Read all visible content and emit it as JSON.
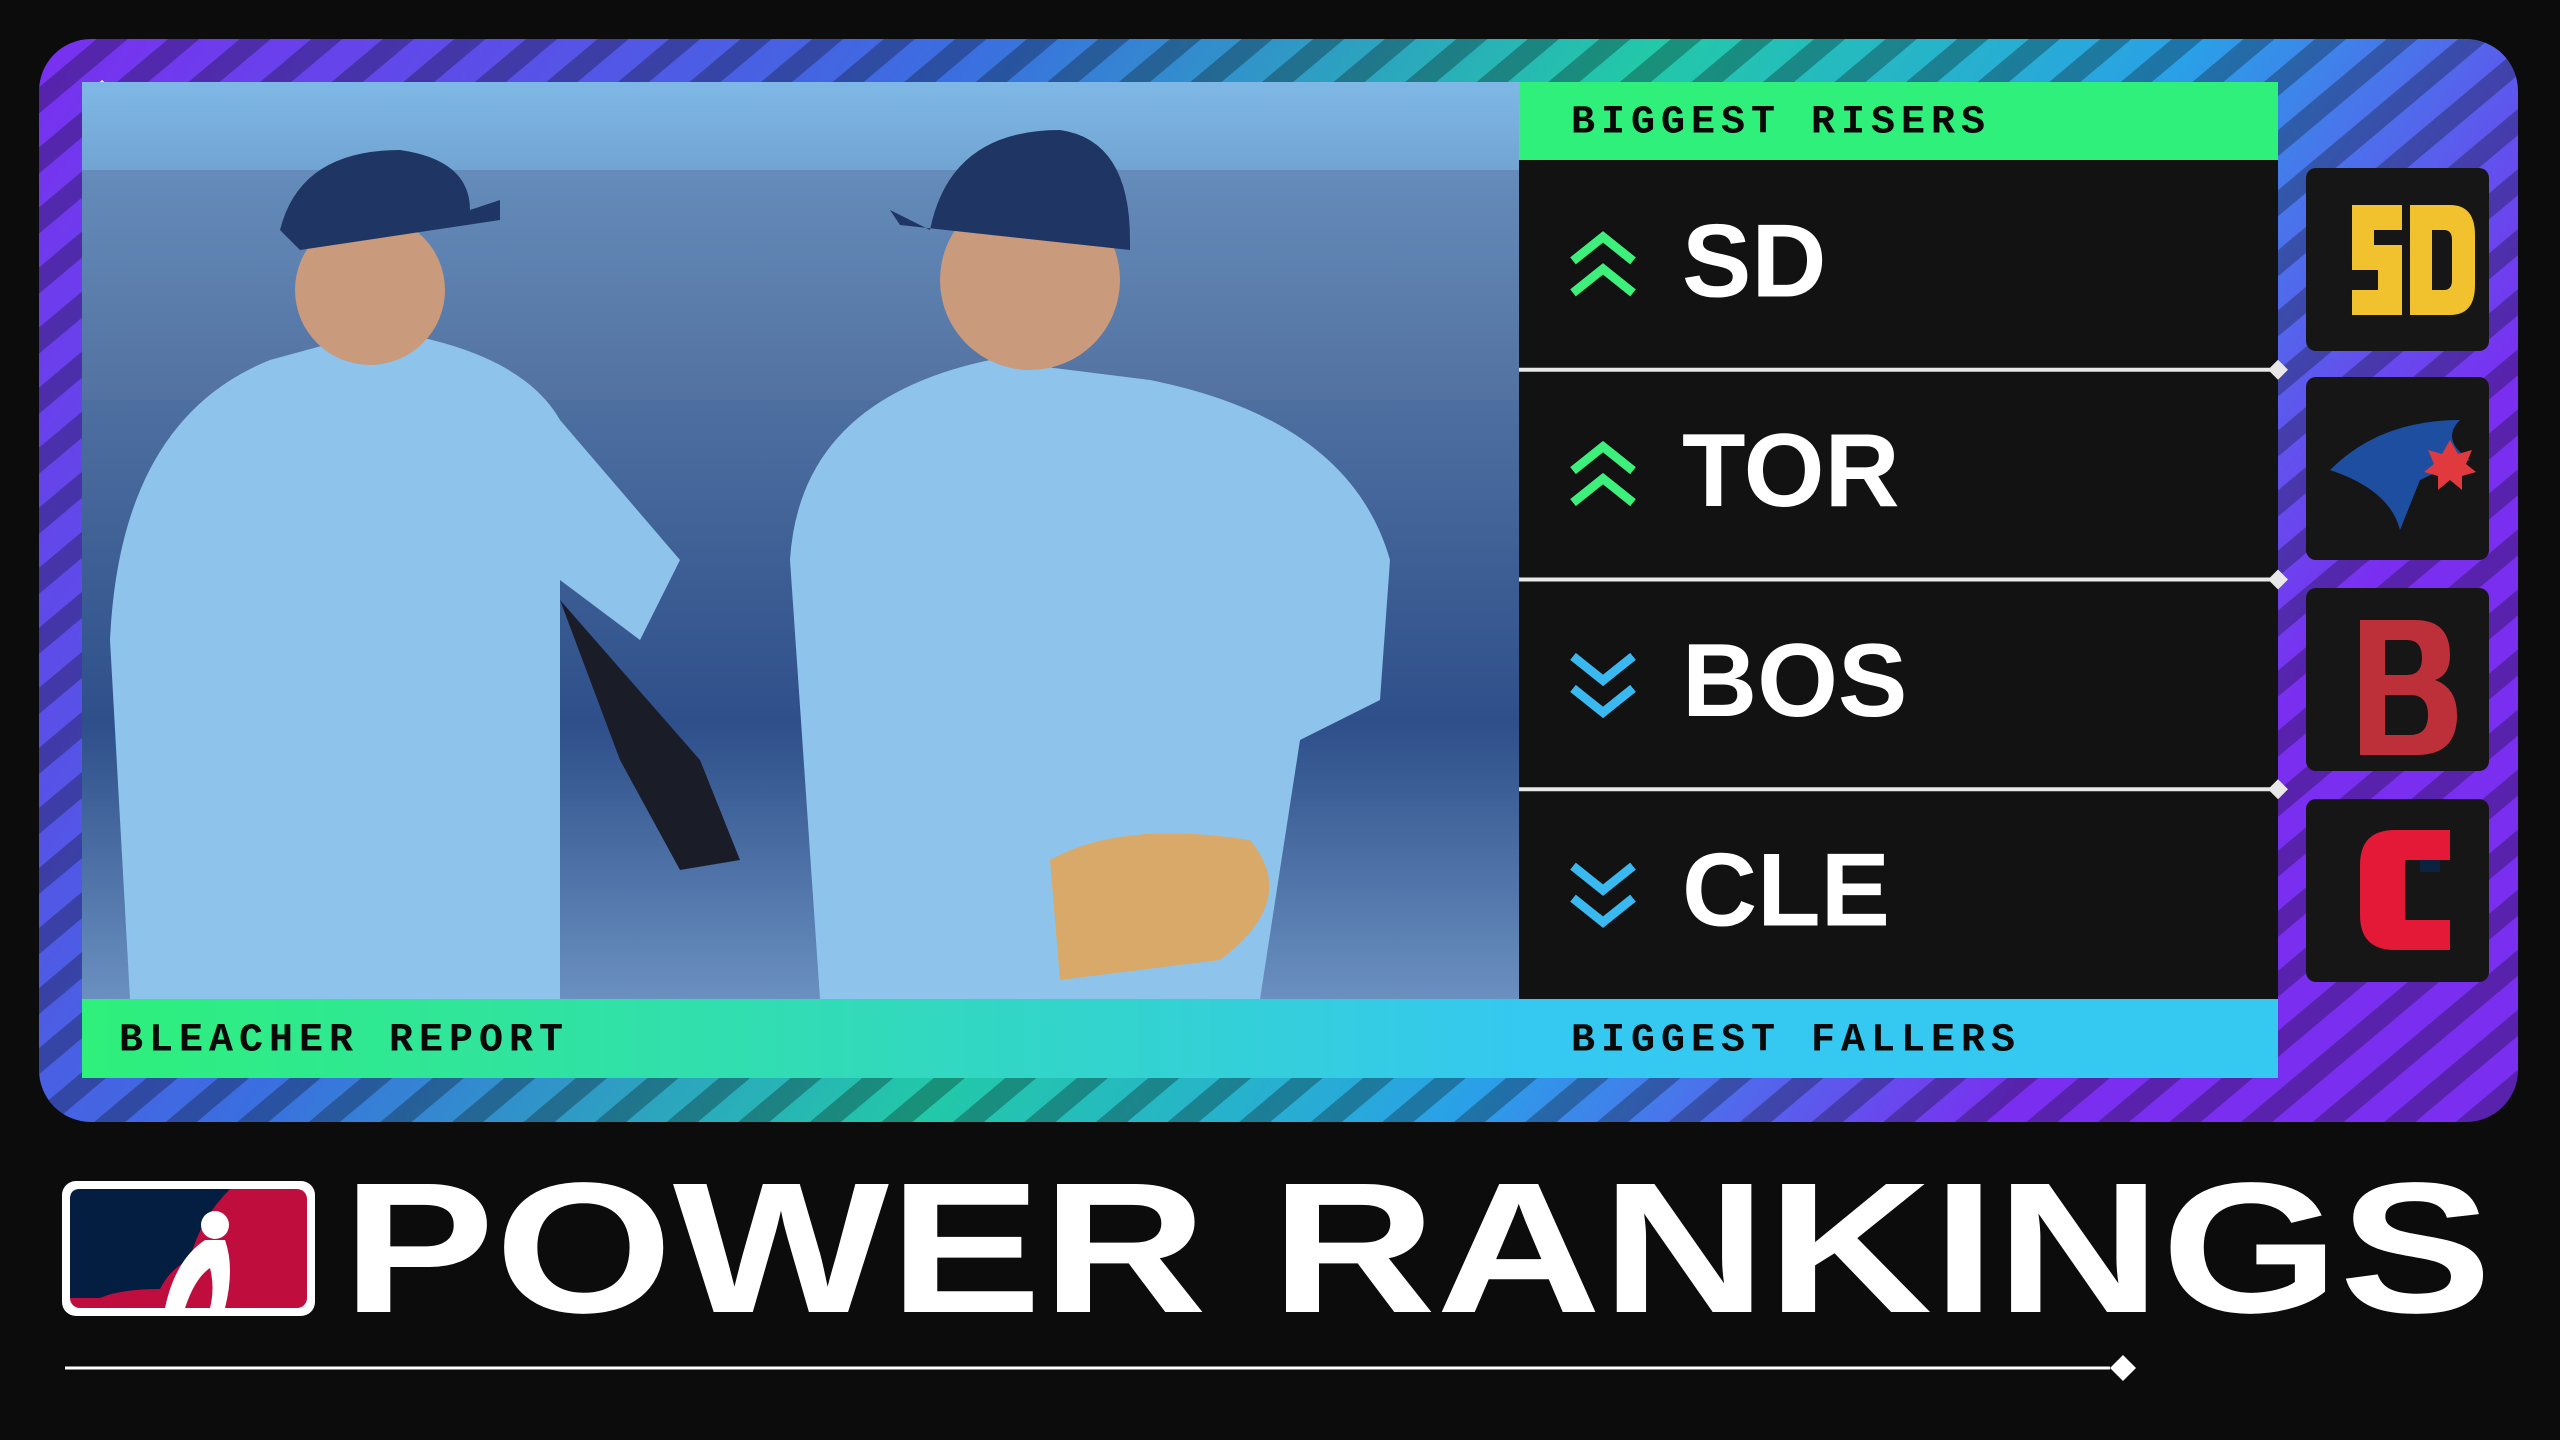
{
  "risers_label": "BIGGEST RISERS",
  "fallers_label": "BIGGEST FALLERS",
  "risers": [
    "SD",
    "TOR"
  ],
  "fallers": [
    "BOS",
    "CLE"
  ],
  "credit": "BLEACHER REPORT",
  "title": "POWER RANKINGS"
}
